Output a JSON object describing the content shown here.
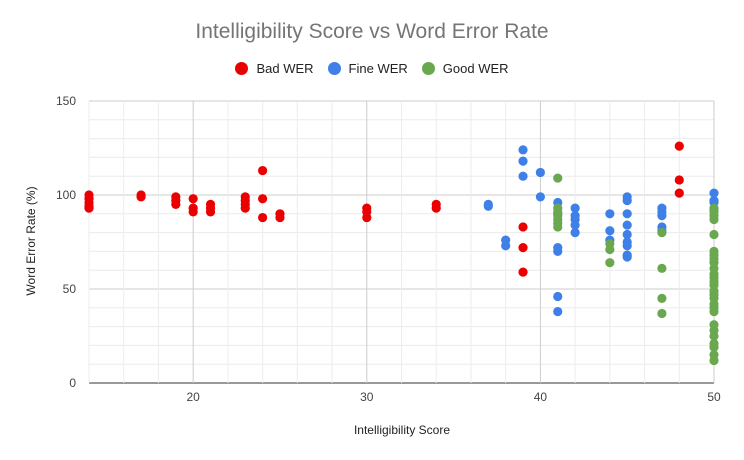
{
  "chart_data": {
    "type": "scatter",
    "title": "Intelligibility Score vs Word Error Rate",
    "xlabel": "Intelligibility Score",
    "ylabel": "Word Error Rate (%)",
    "xlim": [
      14,
      50
    ],
    "ylim": [
      0,
      150
    ],
    "x_ticks": [
      20,
      30,
      40,
      50
    ],
    "y_ticks": [
      0,
      50,
      100,
      150
    ],
    "grid": true,
    "legend_position": "top",
    "series": [
      {
        "name": "Bad WER",
        "color": "#ea0000",
        "points": [
          [
            14,
            100
          ],
          [
            14,
            98
          ],
          [
            14,
            96
          ],
          [
            14,
            94
          ],
          [
            14,
            93
          ],
          [
            17,
            100
          ],
          [
            17,
            99
          ],
          [
            19,
            99
          ],
          [
            19,
            97
          ],
          [
            19,
            95
          ],
          [
            20,
            98
          ],
          [
            20,
            93
          ],
          [
            20,
            91
          ],
          [
            21,
            95
          ],
          [
            21,
            93
          ],
          [
            21,
            91
          ],
          [
            23,
            99
          ],
          [
            23,
            97
          ],
          [
            23,
            95
          ],
          [
            23,
            93
          ],
          [
            24,
            113
          ],
          [
            24,
            98
          ],
          [
            24,
            88
          ],
          [
            25,
            90
          ],
          [
            25,
            88
          ],
          [
            30,
            93
          ],
          [
            30,
            91
          ],
          [
            30,
            88
          ],
          [
            34,
            95
          ],
          [
            34,
            93
          ],
          [
            39,
            83
          ],
          [
            39,
            72
          ],
          [
            39,
            59
          ],
          [
            48,
            126
          ],
          [
            48,
            108
          ],
          [
            48,
            101
          ]
        ]
      },
      {
        "name": "Fine WER",
        "color": "#3f7fe8",
        "points": [
          [
            37,
            95
          ],
          [
            37,
            94
          ],
          [
            38,
            76
          ],
          [
            38,
            73
          ],
          [
            39,
            124
          ],
          [
            39,
            118
          ],
          [
            39,
            110
          ],
          [
            40,
            112
          ],
          [
            40,
            99
          ],
          [
            41,
            96
          ],
          [
            41,
            90
          ],
          [
            41,
            72
          ],
          [
            41,
            70
          ],
          [
            41,
            46
          ],
          [
            41,
            38
          ],
          [
            42,
            93
          ],
          [
            42,
            89
          ],
          [
            42,
            87
          ],
          [
            42,
            84
          ],
          [
            42,
            80
          ],
          [
            44,
            90
          ],
          [
            44,
            81
          ],
          [
            44,
            76
          ],
          [
            45,
            99
          ],
          [
            45,
            97
          ],
          [
            45,
            90
          ],
          [
            45,
            84
          ],
          [
            45,
            79
          ],
          [
            45,
            75
          ],
          [
            45,
            73
          ],
          [
            45,
            68
          ],
          [
            45,
            67
          ],
          [
            47,
            93
          ],
          [
            47,
            91
          ],
          [
            47,
            89
          ],
          [
            47,
            83
          ],
          [
            47,
            81
          ],
          [
            50,
            101
          ],
          [
            50,
            97
          ],
          [
            50,
            96
          ],
          [
            50,
            92
          ]
        ]
      },
      {
        "name": "Good WER",
        "color": "#6aa84f",
        "points": [
          [
            41,
            109
          ],
          [
            41,
            93
          ],
          [
            41,
            91
          ],
          [
            41,
            89
          ],
          [
            41,
            87
          ],
          [
            41,
            85
          ],
          [
            41,
            83
          ],
          [
            44,
            74
          ],
          [
            44,
            71
          ],
          [
            44,
            64
          ],
          [
            47,
            80
          ],
          [
            47,
            61
          ],
          [
            47,
            45
          ],
          [
            47,
            37
          ],
          [
            50,
            93
          ],
          [
            50,
            91
          ],
          [
            50,
            89
          ],
          [
            50,
            87
          ],
          [
            50,
            79
          ],
          [
            50,
            70
          ],
          [
            50,
            68
          ],
          [
            50,
            66
          ],
          [
            50,
            64
          ],
          [
            50,
            61
          ],
          [
            50,
            58
          ],
          [
            50,
            56
          ],
          [
            50,
            54
          ],
          [
            50,
            52
          ],
          [
            50,
            49
          ],
          [
            50,
            47
          ],
          [
            50,
            45
          ],
          [
            50,
            42
          ],
          [
            50,
            40
          ],
          [
            50,
            38
          ],
          [
            50,
            31
          ],
          [
            50,
            28
          ],
          [
            50,
            25
          ],
          [
            50,
            21
          ],
          [
            50,
            19
          ],
          [
            50,
            15
          ],
          [
            50,
            12
          ]
        ]
      }
    ]
  }
}
